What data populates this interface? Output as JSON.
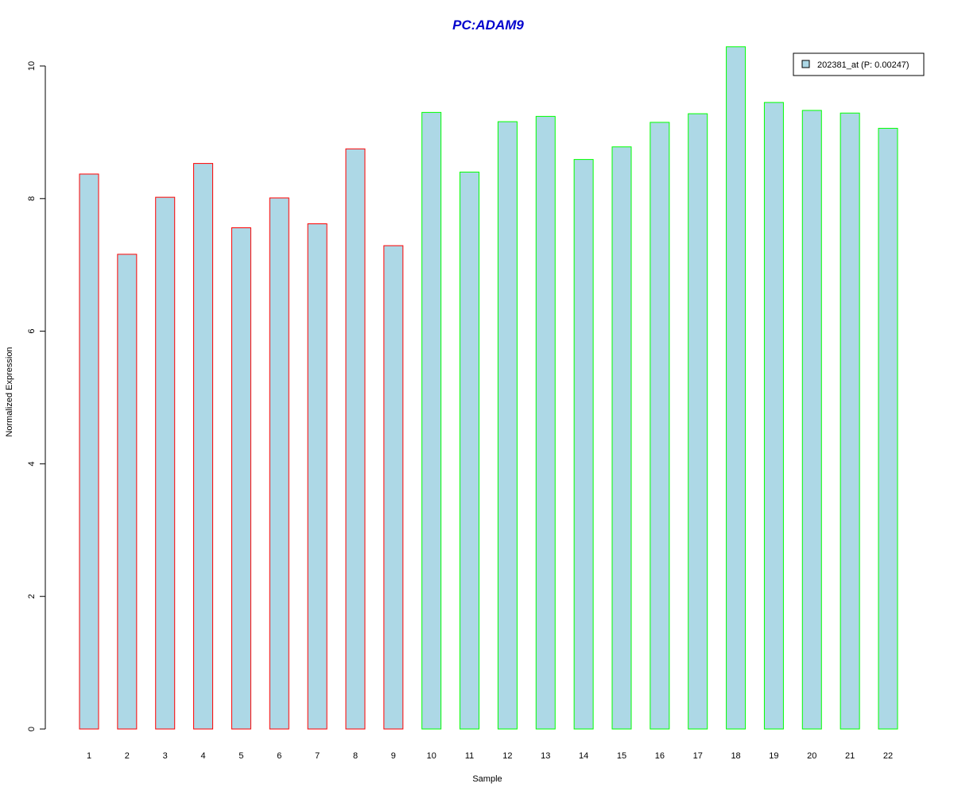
{
  "colors": {
    "bar_fill": "#add8e6",
    "group_a_border": "#ff0000",
    "group_b_border": "#00ff00",
    "title": "#0000cd",
    "axis": "#000000"
  },
  "chart_data": {
    "type": "bar",
    "title": "PC:ADAM9",
    "xlabel": "Sample",
    "ylabel": "Normalized Expression",
    "ylim": [
      0,
      10
    ],
    "yticks": [
      0,
      2,
      4,
      6,
      8,
      10
    ],
    "grid": false,
    "legend_position": "top-right",
    "categories": [
      "1",
      "2",
      "3",
      "4",
      "5",
      "6",
      "7",
      "8",
      "9",
      "10",
      "11",
      "12",
      "13",
      "14",
      "15",
      "16",
      "17",
      "18",
      "19",
      "20",
      "21",
      "22"
    ],
    "series": [
      {
        "name": "202381_at (P: 0.00247)",
        "values": [
          8.37,
          7.16,
          8.02,
          8.53,
          7.56,
          8.01,
          7.62,
          8.75,
          7.29,
          9.3,
          8.4,
          9.16,
          9.24,
          8.59,
          8.78,
          9.15,
          9.28,
          10.29,
          9.45,
          9.33,
          9.29,
          9.06
        ],
        "groups": [
          "a",
          "a",
          "a",
          "a",
          "a",
          "a",
          "a",
          "a",
          "a",
          "b",
          "b",
          "b",
          "b",
          "b",
          "b",
          "b",
          "b",
          "b",
          "b",
          "b",
          "b",
          "b"
        ]
      }
    ]
  }
}
